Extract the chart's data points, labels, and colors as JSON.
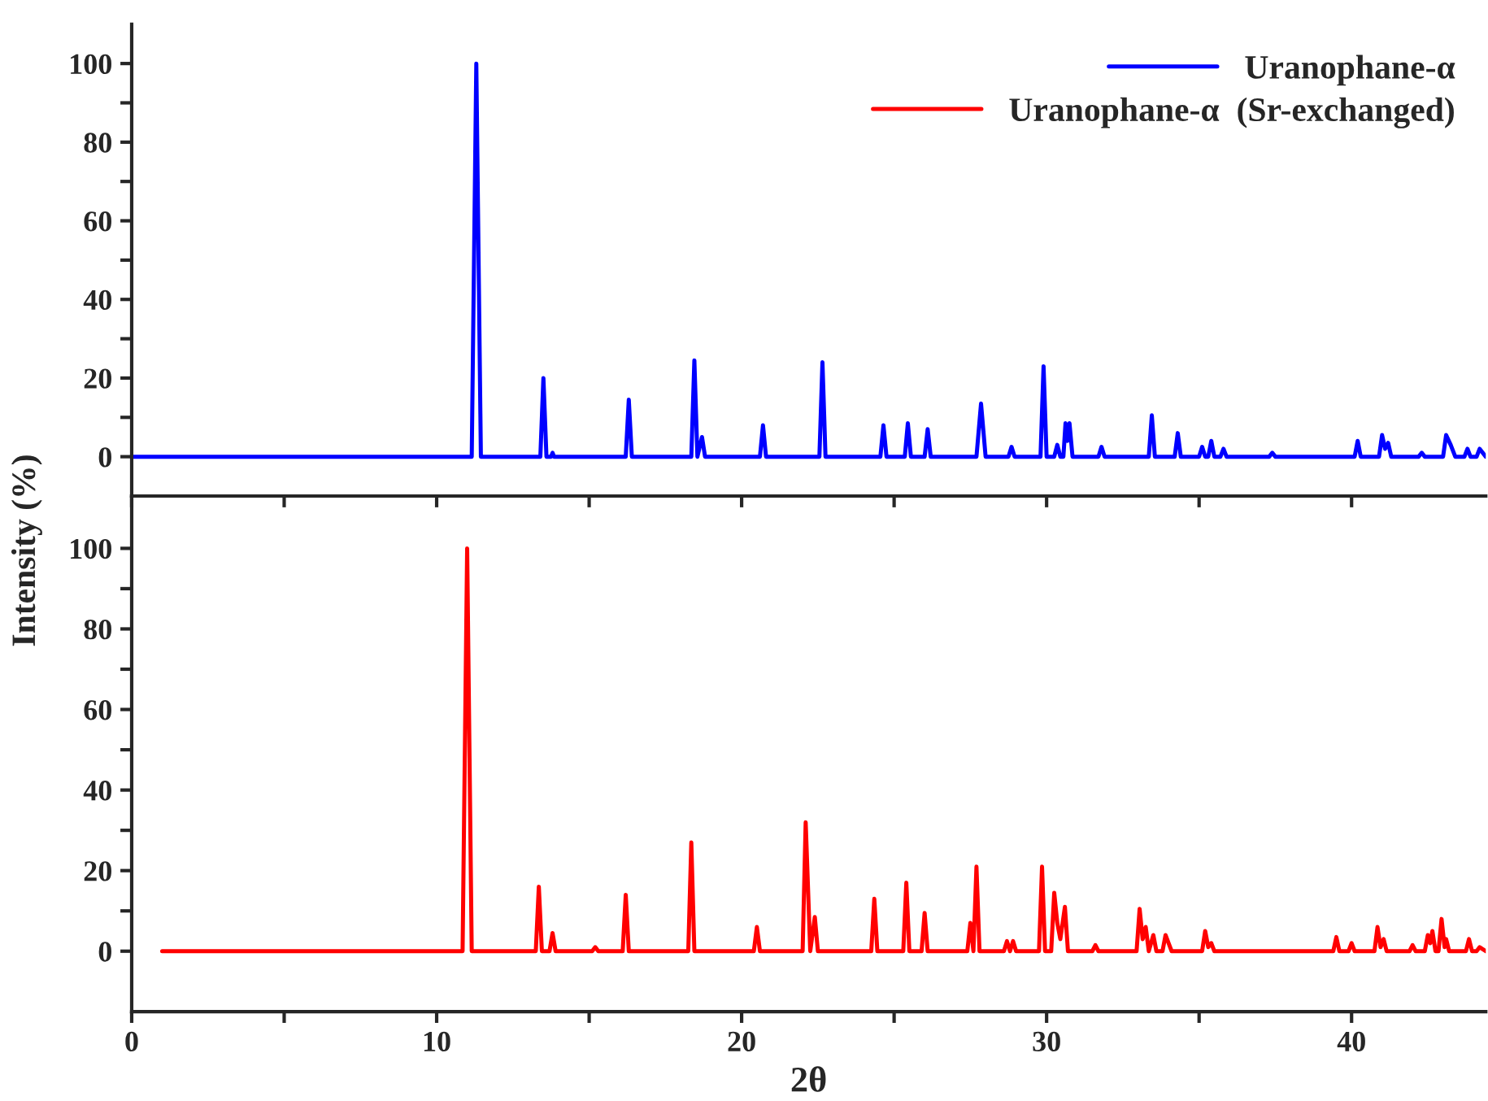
{
  "chart_data": [
    {
      "type": "line",
      "ylabel": "Intensity (%)",
      "xlim": [
        0,
        44.4
      ],
      "ylim": [
        -10,
        110
      ],
      "xticks": [
        {
          "value": 0,
          "label": null
        },
        {
          "value": 5,
          "label": null
        },
        {
          "value": 10,
          "label": null
        },
        {
          "value": 15,
          "label": null
        },
        {
          "value": 20,
          "label": null
        },
        {
          "value": 25,
          "label": null
        },
        {
          "value": 30,
          "label": null
        },
        {
          "value": 35,
          "label": null
        },
        {
          "value": 40,
          "label": null
        }
      ],
      "yticks": [
        0,
        {
          "value": 10,
          "label": null
        },
        20,
        {
          "value": 30,
          "label": null
        },
        40,
        {
          "value": 50,
          "label": null
        },
        60,
        {
          "value": 70,
          "label": null
        },
        80,
        {
          "value": 90,
          "label": null
        },
        100
      ],
      "tick_labels": "y",
      "grid": false,
      "legend": "top right",
      "line_style": "solid",
      "marker": "none",
      "series": [
        {
          "name": "Uranophane-α",
          "color": "#0000ff",
          "x": [
            0,
            11.15,
            11.3,
            11.45,
            13.4,
            13.5,
            13.6,
            13.75,
            13.8,
            13.85,
            16.2,
            16.3,
            16.4,
            18.35,
            18.45,
            18.55,
            18.7,
            18.8,
            20.6,
            20.7,
            20.8,
            22.55,
            22.65,
            22.75,
            24.55,
            24.65,
            24.75,
            25.35,
            25.45,
            25.55,
            26.0,
            26.1,
            26.2,
            27.7,
            27.85,
            28.0,
            28.75,
            28.85,
            28.95,
            29.8,
            29.9,
            30.0,
            30.25,
            30.35,
            30.45,
            30.55,
            30.62,
            30.68,
            30.75,
            30.85,
            31.7,
            31.8,
            31.9,
            33.35,
            33.45,
            33.55,
            34.2,
            34.3,
            34.4,
            35.0,
            35.1,
            35.2,
            35.3,
            35.4,
            35.5,
            35.7,
            35.8,
            35.9,
            37.3,
            37.4,
            37.5,
            40.1,
            40.2,
            40.3,
            40.9,
            41.0,
            41.1,
            41.2,
            41.3,
            42.2,
            42.3,
            42.4,
            43.0,
            43.1,
            43.25,
            43.4,
            43.7,
            43.8,
            43.9,
            44.1,
            44.2,
            44.4
          ],
          "values": [
            0,
            0,
            100,
            0,
            0,
            20,
            0,
            0,
            1,
            0,
            0,
            14.5,
            0,
            0,
            24.5,
            0,
            5,
            0,
            0,
            8,
            0,
            0,
            24,
            0,
            0,
            8,
            0,
            0,
            8.5,
            0,
            0,
            7,
            0,
            0,
            13.5,
            0,
            0,
            2.5,
            0,
            0,
            23,
            0,
            0,
            3,
            0,
            0,
            8.5,
            4,
            8.5,
            0,
            0,
            2.5,
            0,
            0,
            10.5,
            0,
            0,
            6,
            0,
            0,
            2.5,
            0,
            0,
            4,
            0,
            0,
            2,
            0,
            0,
            1,
            0,
            0,
            4,
            0,
            0,
            5.5,
            2,
            3.5,
            0,
            0,
            1,
            0,
            0,
            5.5,
            3,
            0,
            0,
            2,
            0,
            0,
            2,
            0
          ]
        }
      ]
    },
    {
      "type": "line",
      "xlabel": "2θ",
      "xlim": [
        0,
        44.4
      ],
      "ylim": [
        -15,
        113
      ],
      "xticks": [
        0,
        {
          "value": 5,
          "label": null
        },
        10,
        {
          "value": 15,
          "label": null
        },
        20,
        {
          "value": 25,
          "label": null
        },
        30,
        {
          "value": 35,
          "label": null
        },
        40
      ],
      "yticks": [
        0,
        {
          "value": 10,
          "label": null
        },
        20,
        {
          "value": 30,
          "label": null
        },
        40,
        {
          "value": 50,
          "label": null
        },
        60,
        {
          "value": 70,
          "label": null
        },
        80,
        {
          "value": 90,
          "label": null
        },
        100
      ],
      "grid": false,
      "legend": "top right",
      "line_style": "solid",
      "marker": "none",
      "series": [
        {
          "name": "Uranophane-α  (Sr-exchanged)",
          "color": "#ff0000",
          "x": [
            1.0,
            10.85,
            11.0,
            11.15,
            13.25,
            13.35,
            13.45,
            13.7,
            13.8,
            13.9,
            15.1,
            15.2,
            15.3,
            16.1,
            16.2,
            16.3,
            18.25,
            18.35,
            18.45,
            20.4,
            20.5,
            20.6,
            22.0,
            22.1,
            22.25,
            22.4,
            22.5,
            24.25,
            24.35,
            24.45,
            25.3,
            25.4,
            25.5,
            25.9,
            26.0,
            26.1,
            27.4,
            27.5,
            27.6,
            27.7,
            27.8,
            28.6,
            28.7,
            28.8,
            28.9,
            29.0,
            29.75,
            29.85,
            29.95,
            30.15,
            30.25,
            30.35,
            30.45,
            30.6,
            30.7,
            31.5,
            31.6,
            31.7,
            32.95,
            33.05,
            33.15,
            33.25,
            33.35,
            33.5,
            33.6,
            33.8,
            33.9,
            34.0,
            34.1,
            35.1,
            35.2,
            35.3,
            35.4,
            35.5,
            39.4,
            39.5,
            39.6,
            39.9,
            40.0,
            40.1,
            40.75,
            40.85,
            40.95,
            41.05,
            41.15,
            41.9,
            42.0,
            42.1,
            42.4,
            42.5,
            42.58,
            42.65,
            42.75,
            42.85,
            42.95,
            43.05,
            43.1,
            43.2,
            43.75,
            43.85,
            43.95,
            44.1,
            44.2,
            44.4
          ],
          "values": [
            0,
            0,
            100,
            0,
            0,
            16,
            0,
            0,
            4.5,
            0,
            0,
            1,
            0,
            0,
            14,
            0,
            0,
            27,
            0,
            0,
            6,
            0,
            0,
            32,
            0,
            8.5,
            0,
            0,
            13,
            0,
            0,
            17,
            0,
            0,
            9.5,
            0,
            0,
            7,
            0,
            21,
            0,
            0,
            2.5,
            0,
            2.5,
            0,
            0,
            21,
            0,
            0,
            14.5,
            7,
            3,
            11,
            0,
            0,
            1.5,
            0,
            0,
            10.5,
            3,
            6,
            0,
            4,
            0,
            0,
            4,
            2,
            0,
            0,
            5,
            1,
            2,
            0,
            0,
            3.5,
            0,
            0,
            2,
            0,
            0,
            6,
            1,
            3,
            0,
            0,
            1.5,
            0,
            0,
            4,
            2,
            5,
            0,
            0,
            8,
            1,
            3,
            0,
            0,
            3,
            0,
            0,
            1,
            0
          ]
        }
      ]
    }
  ]
}
